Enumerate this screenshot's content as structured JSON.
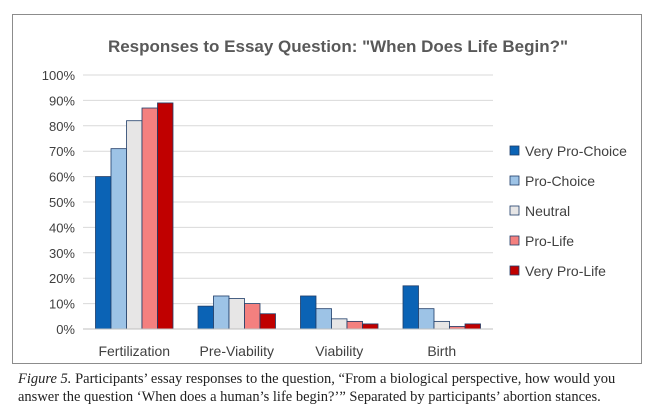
{
  "caption": {
    "label": "Figure 5.",
    "text": " Participants’ essay responses to the question, “From a biological perspective, how would you answer the question ‘When does a human’s life begin?’” Separated by participants’ abortion stances."
  },
  "chart_data": {
    "type": "bar",
    "title": "Responses to Essay Question: \"When Does Life Begin?\"",
    "xlabel": "",
    "ylabel": "",
    "categories": [
      "Fertilization",
      "Pre-Viability",
      "Viability",
      "Birth"
    ],
    "ylim": [
      0,
      100
    ],
    "yticks": [
      "0%",
      "10%",
      "20%",
      "30%",
      "40%",
      "50%",
      "60%",
      "70%",
      "80%",
      "90%",
      "100%"
    ],
    "grid": true,
    "legend_position": "right",
    "series": [
      {
        "name": "Very Pro-Choice",
        "color": "#0b63b5",
        "values": [
          60,
          9,
          13,
          17
        ]
      },
      {
        "name": "Pro-Choice",
        "color": "#9dc3e6",
        "values": [
          71,
          13,
          8,
          8
        ]
      },
      {
        "name": "Neutral",
        "color": "#e7e6e6",
        "values": [
          82,
          12,
          4,
          3
        ]
      },
      {
        "name": "Pro-Life",
        "color": "#f4807f",
        "values": [
          87,
          10,
          3,
          1
        ]
      },
      {
        "name": "Very Pro-Life",
        "color": "#c00000",
        "values": [
          89,
          6,
          2,
          2
        ]
      }
    ]
  }
}
